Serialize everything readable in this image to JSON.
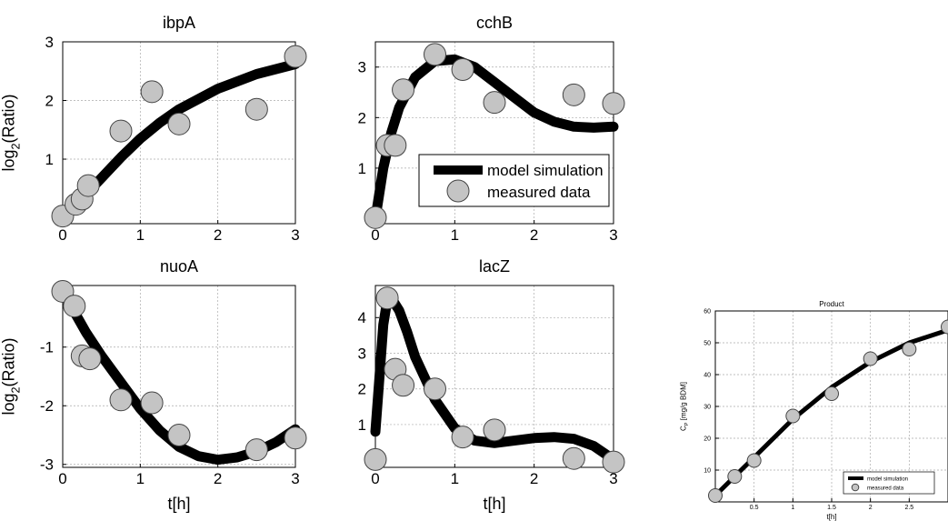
{
  "colors": {
    "model_line": "#000000",
    "marker_fill": "#c4c4c4",
    "marker_edge": "#444444",
    "grid": "#aaaaaa"
  },
  "legend": {
    "model": "model simulation",
    "measured": "measured data"
  },
  "chart_data": [
    {
      "type": "line",
      "title": "ibpA",
      "xlabel": "",
      "ylabel": "log2(Ratio)",
      "ylabel_parts": {
        "pre": "log",
        "sub": "2",
        "post": "(Ratio)"
      },
      "xlim": [
        0,
        3
      ],
      "ylim": [
        -0.1,
        3
      ],
      "xticks": [
        0,
        1,
        2,
        3
      ],
      "yticks": [
        1,
        2,
        3
      ],
      "grid": true,
      "series": [
        {
          "name": "model simulation",
          "kind": "line",
          "x": [
            0,
            0.1,
            0.2,
            0.3,
            0.5,
            0.75,
            1,
            1.25,
            1.5,
            2,
            2.5,
            3
          ],
          "y": [
            0.02,
            0.12,
            0.26,
            0.4,
            0.68,
            1.03,
            1.35,
            1.62,
            1.85,
            2.2,
            2.45,
            2.62
          ]
        },
        {
          "name": "measured data",
          "kind": "scatter",
          "x": [
            0,
            0.17,
            0.25,
            0.33,
            0.75,
            1.15,
            1.5,
            2.5,
            3
          ],
          "y": [
            0.03,
            0.23,
            0.32,
            0.55,
            1.48,
            2.15,
            1.6,
            1.85,
            2.75
          ]
        }
      ]
    },
    {
      "type": "line",
      "title": "cchB",
      "xlabel": "",
      "ylabel": "",
      "xlim": [
        0,
        3
      ],
      "ylim": [
        -0.1,
        3.5
      ],
      "xticks": [
        0,
        1,
        2,
        3
      ],
      "yticks": [
        1,
        2,
        3
      ],
      "grid": true,
      "legend": "inside",
      "series": [
        {
          "name": "model simulation",
          "kind": "line",
          "x": [
            0,
            0.1,
            0.2,
            0.3,
            0.5,
            0.75,
            1,
            1.25,
            1.5,
            1.75,
            2,
            2.25,
            2.5,
            2.75,
            3
          ],
          "y": [
            0,
            1.0,
            1.7,
            2.2,
            2.8,
            3.12,
            3.15,
            3.0,
            2.7,
            2.4,
            2.1,
            1.92,
            1.82,
            1.8,
            1.82
          ]
        },
        {
          "name": "measured data",
          "kind": "scatter",
          "x": [
            0,
            0.15,
            0.25,
            0.35,
            0.75,
            1.1,
            1.5,
            2.5,
            3
          ],
          "y": [
            0.02,
            1.45,
            1.45,
            2.55,
            3.25,
            2.95,
            2.3,
            2.45,
            2.28
          ]
        }
      ]
    },
    {
      "type": "line",
      "title": "nuoA",
      "xlabel": "t[h]",
      "ylabel": "log2(Ratio)",
      "ylabel_parts": {
        "pre": "log",
        "sub": "2",
        "post": "(Ratio)"
      },
      "xlim": [
        0,
        3
      ],
      "ylim": [
        -3.05,
        0.05
      ],
      "xticks": [
        0,
        1,
        2,
        3
      ],
      "yticks": [
        -1,
        -2,
        -3
      ],
      "grid": true,
      "series": [
        {
          "name": "model simulation",
          "kind": "line",
          "x": [
            0,
            0.15,
            0.3,
            0.5,
            0.75,
            1,
            1.25,
            1.5,
            1.75,
            2,
            2.25,
            2.5,
            2.75,
            3
          ],
          "y": [
            -0.05,
            -0.4,
            -0.75,
            -1.15,
            -1.6,
            -2.05,
            -2.42,
            -2.7,
            -2.86,
            -2.92,
            -2.88,
            -2.78,
            -2.62,
            -2.4
          ]
        },
        {
          "name": "measured data",
          "kind": "scatter",
          "x": [
            0,
            0.15,
            0.25,
            0.35,
            0.75,
            1.15,
            1.5,
            2.5,
            3
          ],
          "y": [
            -0.05,
            -0.3,
            -1.15,
            -1.2,
            -1.9,
            -1.95,
            -2.5,
            -2.75,
            -2.55
          ]
        }
      ]
    },
    {
      "type": "line",
      "title": "lacZ",
      "xlabel": "t[h]",
      "ylabel": "",
      "xlim": [
        0,
        3
      ],
      "ylim": [
        -0.2,
        4.9
      ],
      "xticks": [
        0,
        1,
        2,
        3
      ],
      "yticks": [
        1,
        2,
        3,
        4
      ],
      "grid": true,
      "series": [
        {
          "name": "model simulation",
          "kind": "line",
          "x": [
            0,
            0.05,
            0.1,
            0.15,
            0.2,
            0.3,
            0.4,
            0.5,
            0.75,
            1,
            1.25,
            1.5,
            1.75,
            2,
            2.25,
            2.5,
            2.75,
            3
          ],
          "y": [
            0.8,
            2.3,
            3.8,
            4.5,
            4.55,
            4.2,
            3.6,
            2.9,
            1.7,
            0.9,
            0.55,
            0.48,
            0.55,
            0.62,
            0.65,
            0.6,
            0.4,
            0.02
          ]
        },
        {
          "name": "measured data",
          "kind": "scatter",
          "x": [
            0,
            0.15,
            0.25,
            0.35,
            0.75,
            1.1,
            1.5,
            2.5,
            3
          ],
          "y": [
            0.02,
            4.55,
            2.55,
            2.1,
            2.0,
            0.65,
            0.85,
            0.05,
            -0.05
          ]
        }
      ]
    },
    {
      "type": "line",
      "title": "Product",
      "xlabel": "t[h]",
      "ylabel": "C_P [mg/g BDM]",
      "ylabel_parts": {
        "pre": "C",
        "sub": "P",
        "post": " [mg/g BDM]"
      },
      "xlim": [
        0,
        3
      ],
      "ylim": [
        0,
        60
      ],
      "xticks": [
        0.5,
        1,
        1.5,
        2,
        2.5
      ],
      "yticks": [
        10,
        20,
        30,
        40,
        50,
        60
      ],
      "grid": true,
      "legend": "bottom-right",
      "series": [
        {
          "name": "model simulation",
          "kind": "line",
          "x": [
            0,
            0.25,
            0.5,
            0.75,
            1,
            1.25,
            1.5,
            1.75,
            2,
            2.25,
            2.5,
            2.75,
            3
          ],
          "y": [
            2,
            8,
            14,
            20,
            26,
            31,
            36,
            40,
            44,
            47,
            50,
            52,
            54
          ]
        },
        {
          "name": "measured data",
          "kind": "scatter",
          "x": [
            0,
            0.25,
            0.5,
            1,
            1.5,
            2,
            2.5,
            3
          ],
          "y": [
            2,
            8,
            13,
            27,
            34,
            45,
            48,
            55
          ]
        }
      ]
    }
  ]
}
